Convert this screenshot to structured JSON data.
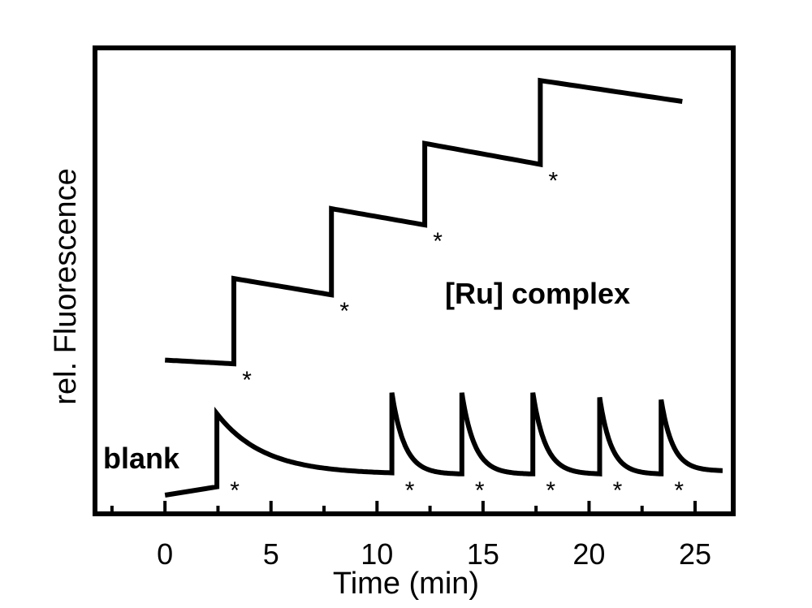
{
  "chart_data": {
    "type": "line",
    "title": "",
    "xlabel": "Time (min)",
    "ylabel": "rel. Fluorescence",
    "xlim": [
      -3.3,
      26.8
    ],
    "ylim": [
      0,
      100
    ],
    "y_ticks_labeled": false,
    "x_ticks": [
      0,
      5,
      10,
      15,
      20,
      25
    ],
    "x_minor_ticks": [
      -2.5,
      2.5,
      7.5,
      12.5,
      17.5,
      22.5
    ],
    "grid": false,
    "legend": "none",
    "annotations": [
      "[Ru] complex",
      "blank"
    ],
    "addition_marker": "*",
    "series": [
      {
        "name": "[Ru] complex",
        "steps": [
          {
            "t_start": 0.0,
            "t_end": 3.25,
            "y_start": 33.0,
            "y_end": 32.2
          },
          {
            "t_start": 3.25,
            "t_end": 7.85,
            "y_start": 50.5,
            "y_end": 47.0
          },
          {
            "t_start": 7.85,
            "t_end": 12.25,
            "y_start": 65.5,
            "y_end": 62.0
          },
          {
            "t_start": 12.25,
            "t_end": 17.7,
            "y_start": 79.5,
            "y_end": 75.0
          },
          {
            "t_start": 17.7,
            "t_end": 24.4,
            "y_start": 93.0,
            "y_end": 88.5
          }
        ],
        "addition_times": [
          3.25,
          7.85,
          12.25,
          17.7
        ]
      },
      {
        "name": "blank",
        "baseline": {
          "t_start": 0.0,
          "t_end": 2.45,
          "y_start": 4.0,
          "y_end": 5.8
        },
        "decays": [
          {
            "t_start": 2.45,
            "t_end": 10.7,
            "y_peak": 21.5,
            "y_floor": 8.5,
            "tau": 2.2
          },
          {
            "t_start": 10.7,
            "t_end": 14.0,
            "y_peak": 26.0,
            "y_floor": 8.5,
            "tau": 0.6
          },
          {
            "t_start": 14.0,
            "t_end": 17.35,
            "y_peak": 26.0,
            "y_floor": 8.5,
            "tau": 0.6
          },
          {
            "t_start": 17.35,
            "t_end": 20.5,
            "y_peak": 26.0,
            "y_floor": 8.5,
            "tau": 0.6
          },
          {
            "t_start": 20.5,
            "t_end": 23.4,
            "y_peak": 25.0,
            "y_floor": 8.5,
            "tau": 0.55
          },
          {
            "t_start": 23.4,
            "t_end": 26.3,
            "y_peak": 24.5,
            "y_floor": 9.2,
            "tau": 0.55
          }
        ],
        "addition_times": [
          2.45,
          10.7,
          14.0,
          17.35,
          20.5,
          23.4
        ]
      }
    ]
  }
}
